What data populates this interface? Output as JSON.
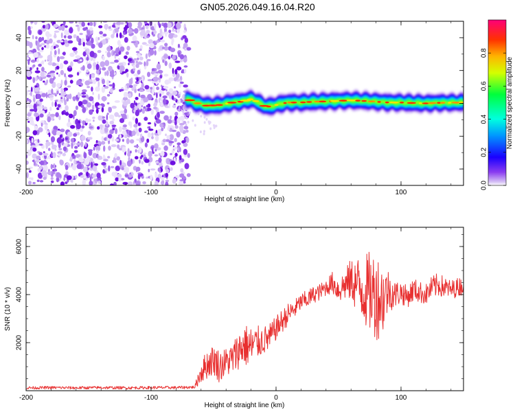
{
  "title": "GN05.2026.049.16.04.R20",
  "chart_data": [
    {
      "type": "heatmap",
      "name": "spectrogram",
      "xlabel": "Height of straight line (km)",
      "ylabel": "Frequency (Hz)",
      "xlim": [
        -200,
        150
      ],
      "ylim": [
        -50,
        50
      ],
      "xticks": [
        -200,
        -100,
        0,
        100
      ],
      "yticks": [
        -40,
        -20,
        0,
        20,
        40
      ],
      "noise_region_x": [
        -200,
        -72
      ],
      "signal_band_hz": [
        -4,
        5
      ],
      "ridge": {
        "x": [
          -72,
          -65,
          -55,
          -45,
          -35,
          -28,
          -20,
          -15,
          -10,
          -5,
          0,
          5,
          10,
          20,
          30,
          40,
          50,
          60,
          70,
          80,
          90,
          100,
          110,
          120,
          130,
          140,
          150
        ],
        "freq": [
          3,
          0.5,
          -1.5,
          -1,
          0.5,
          1,
          2.5,
          1,
          -1.5,
          -2,
          -1,
          0,
          0.5,
          0.5,
          1,
          1.2,
          1.5,
          1.8,
          1.5,
          1,
          0.5,
          0.5,
          0.2,
          0,
          0.3,
          0.4,
          0.5
        ]
      },
      "colorbar": {
        "label": "Normalized spectral amplitude",
        "range": [
          0.0,
          1.0
        ],
        "ticks": [
          "0.0",
          "0.2",
          "0.4",
          "0.6",
          "0.8"
        ],
        "tick_values": [
          0.0,
          0.2,
          0.4,
          0.6,
          0.8
        ]
      }
    },
    {
      "type": "line",
      "name": "snr",
      "xlabel": "Height of straight line (km)",
      "ylabel": "SNR (10 * v/v)",
      "xlim": [
        -200,
        150
      ],
      "ylim": [
        0,
        6800
      ],
      "xticks": [
        -200,
        -100,
        0,
        100
      ],
      "yticks": [
        2000,
        4000,
        6000
      ],
      "color": "#e83030",
      "series": [
        {
          "name": "SNR",
          "x": [
            -200,
            -180,
            -160,
            -140,
            -120,
            -100,
            -80,
            -65,
            -60,
            -55,
            -50,
            -45,
            -40,
            -35,
            -30,
            -25,
            -20,
            -15,
            -10,
            -5,
            0,
            5,
            10,
            15,
            20,
            25,
            30,
            35,
            40,
            45,
            50,
            55,
            60,
            65,
            70,
            75,
            80,
            85,
            90,
            95,
            100,
            105,
            110,
            115,
            120,
            125,
            130,
            135,
            140,
            145,
            150
          ],
          "y": [
            120,
            130,
            120,
            130,
            120,
            130,
            130,
            150,
            800,
            1100,
            1300,
            1000,
            1200,
            1300,
            1700,
            1900,
            1800,
            2000,
            2100,
            2200,
            2600,
            2900,
            3200,
            3400,
            3700,
            3800,
            4000,
            4100,
            4300,
            4500,
            4200,
            4400,
            4600,
            4400,
            4200,
            4100,
            4000,
            3800,
            4200,
            4000,
            4100,
            3900,
            4200,
            4100,
            4000,
            4300,
            4400,
            4300,
            4200,
            4300,
            4400
          ],
          "amplitude": [
            60,
            60,
            60,
            60,
            60,
            60,
            60,
            60,
            500,
            600,
            650,
            700,
            600,
            700,
            800,
            900,
            900,
            700,
            600,
            600,
            500,
            500,
            450,
            400,
            350,
            400,
            350,
            350,
            350,
            450,
            550,
            650,
            900,
            1200,
            1500,
            1700,
            1900,
            1600,
            900,
            600,
            500,
            450,
            500,
            450,
            450,
            500,
            500,
            450,
            400,
            400,
            400
          ]
        }
      ]
    }
  ]
}
